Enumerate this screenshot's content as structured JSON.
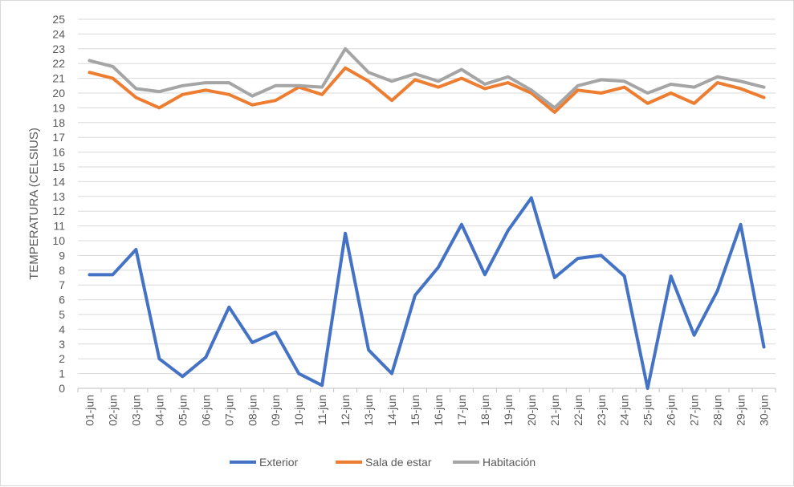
{
  "chart_data": {
    "type": "line",
    "title": "",
    "xlabel": "",
    "ylabel": "TEMPERATURA (CELSIUS)",
    "ylim": [
      0,
      25
    ],
    "yticks": [
      "0",
      "1",
      "2",
      "3",
      "4",
      "5",
      "6",
      "7",
      "8",
      "9",
      "10",
      "11",
      "12",
      "13",
      "14",
      "15",
      "16",
      "17",
      "18",
      "19",
      "20",
      "21",
      "22",
      "23",
      "24",
      "25"
    ],
    "grid": true,
    "legend": "bottom",
    "categories": [
      "01-jun",
      "02-jun",
      "03-jun",
      "04-jun",
      "05-jun",
      "06-jun",
      "07-jun",
      "08-jun",
      "09-jun",
      "10-jun",
      "11-jun",
      "12-jun",
      "13-jun",
      "14-jun",
      "15-jun",
      "16-jun",
      "17-jun",
      "18-jun",
      "19-jun",
      "20-jun",
      "21-jun",
      "22-jun",
      "23-jun",
      "24-jun",
      "25-jun",
      "26-jun",
      "27-jun",
      "28-jun",
      "29-jun",
      "30-jun"
    ],
    "series": [
      {
        "name": "Exterior",
        "color": "#4472c4",
        "values": [
          7.7,
          7.7,
          9.4,
          2.0,
          0.8,
          2.1,
          5.5,
          3.1,
          3.8,
          1.0,
          0.2,
          10.5,
          2.6,
          1.0,
          6.3,
          8.2,
          11.1,
          7.7,
          10.7,
          12.9,
          7.5,
          8.8,
          9.0,
          7.6,
          0.0,
          7.6,
          3.6,
          6.6,
          11.1,
          2.8
        ]
      },
      {
        "name": "Sala de estar",
        "color": "#ed7d31",
        "values": [
          21.4,
          21.0,
          19.7,
          19.0,
          19.9,
          20.2,
          19.9,
          19.2,
          19.5,
          20.4,
          19.9,
          21.7,
          20.8,
          19.5,
          20.9,
          20.4,
          21.0,
          20.3,
          20.7,
          20.0,
          18.7,
          20.2,
          20.0,
          20.4,
          19.3,
          20.0,
          19.3,
          20.7,
          20.3,
          19.7
        ]
      },
      {
        "name": "Habitación",
        "color": "#a5a5a5",
        "values": [
          22.2,
          21.8,
          20.3,
          20.1,
          20.5,
          20.7,
          20.7,
          19.8,
          20.5,
          20.5,
          20.4,
          23.0,
          21.4,
          20.8,
          21.3,
          20.8,
          21.6,
          20.6,
          21.1,
          20.2,
          19.0,
          20.5,
          20.9,
          20.8,
          20.0,
          20.6,
          20.4,
          21.1,
          20.8,
          20.4
        ]
      }
    ]
  }
}
